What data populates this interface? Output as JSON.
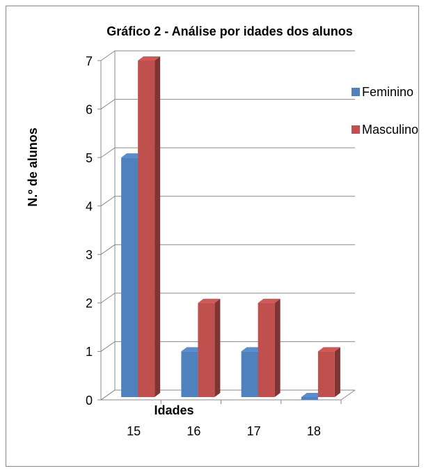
{
  "chart_data": {
    "type": "bar3d",
    "title": "Gráfico 2 - Análise por idades dos alunos",
    "x_label": "Idades",
    "y_label": "N.º de alunos",
    "categories": [
      "15",
      "16",
      "17",
      "18"
    ],
    "series": [
      {
        "name": "Feminino",
        "color": "#4f81bd",
        "values": [
          5,
          1,
          1,
          0
        ]
      },
      {
        "name": "Masculino",
        "color": "#c0504d",
        "values": [
          7,
          2,
          2,
          1
        ]
      }
    ],
    "ylim": [
      0,
      7
    ],
    "yticks": [
      0,
      1,
      2,
      3,
      4,
      5,
      6,
      7
    ],
    "grid": true,
    "legend": "right"
  }
}
